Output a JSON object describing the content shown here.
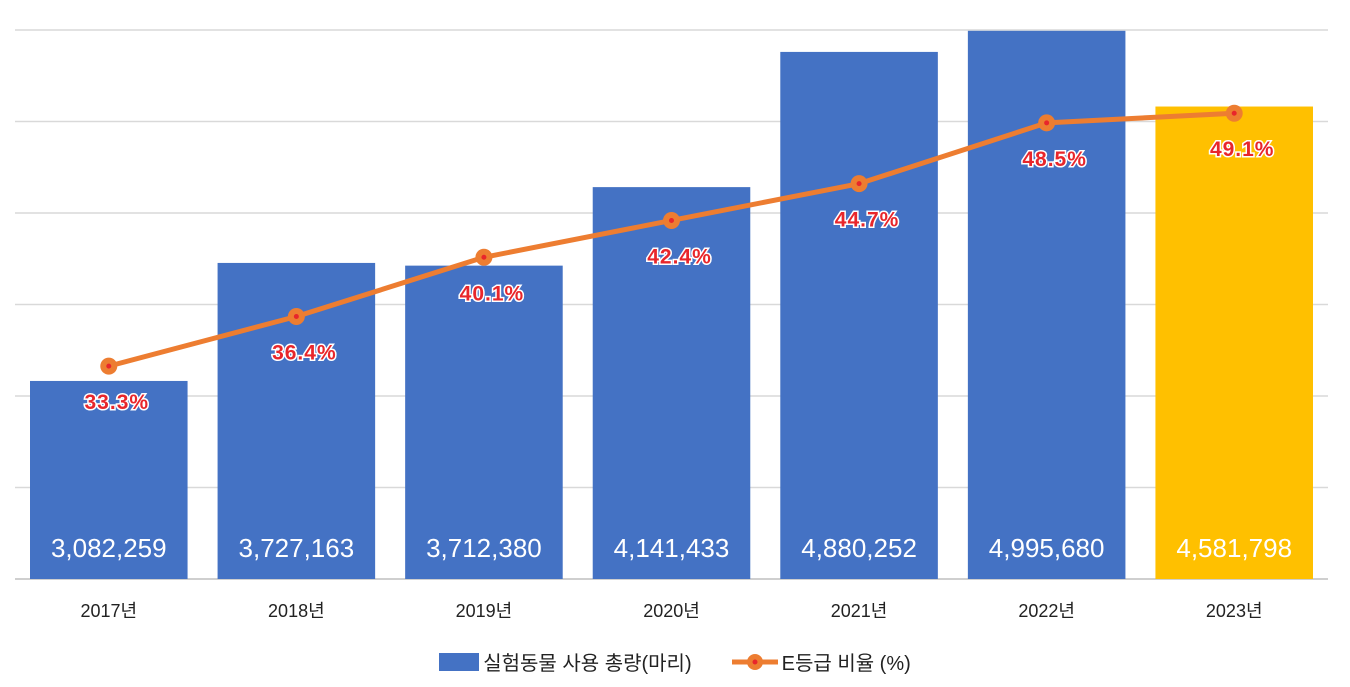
{
  "chart_data": {
    "type": "bar",
    "categories": [
      "2017년",
      "2018년",
      "2019년",
      "2020년",
      "2021년",
      "2022년",
      "2023년"
    ],
    "series": [
      {
        "name": "실험동물 사용 총량(마리)",
        "type": "bar",
        "values": [
          3082259,
          3727163,
          3712380,
          4141433,
          4880252,
          4995680,
          4581798
        ],
        "labels": [
          "3,082,259",
          "3,727,163",
          "3,712,380",
          "4,141,433",
          "4,880,252",
          "4,995,680",
          "4,581,798"
        ],
        "color": "#4472c4",
        "highlight_color": "#ffc000",
        "highlight_index": 6
      },
      {
        "name": "E등급 비율 (%)",
        "type": "line",
        "axis": "secondary",
        "values": [
          33.3,
          36.4,
          40.1,
          42.4,
          44.7,
          48.5,
          49.1
        ],
        "labels": [
          "33.3%",
          "36.4%",
          "40.1%",
          "42.4%",
          "44.7%",
          "48.5%",
          "49.1%"
        ],
        "color": "#ed7d31",
        "marker_dot_color": "#e8262b",
        "label_color": "#e8262b"
      }
    ],
    "ylim": [
      2000000,
      5000000
    ],
    "y2lim": [
      20,
      54.3
    ],
    "grid": true,
    "legend": "bottom",
    "title": "",
    "xlabel": "",
    "ylabel": ""
  }
}
